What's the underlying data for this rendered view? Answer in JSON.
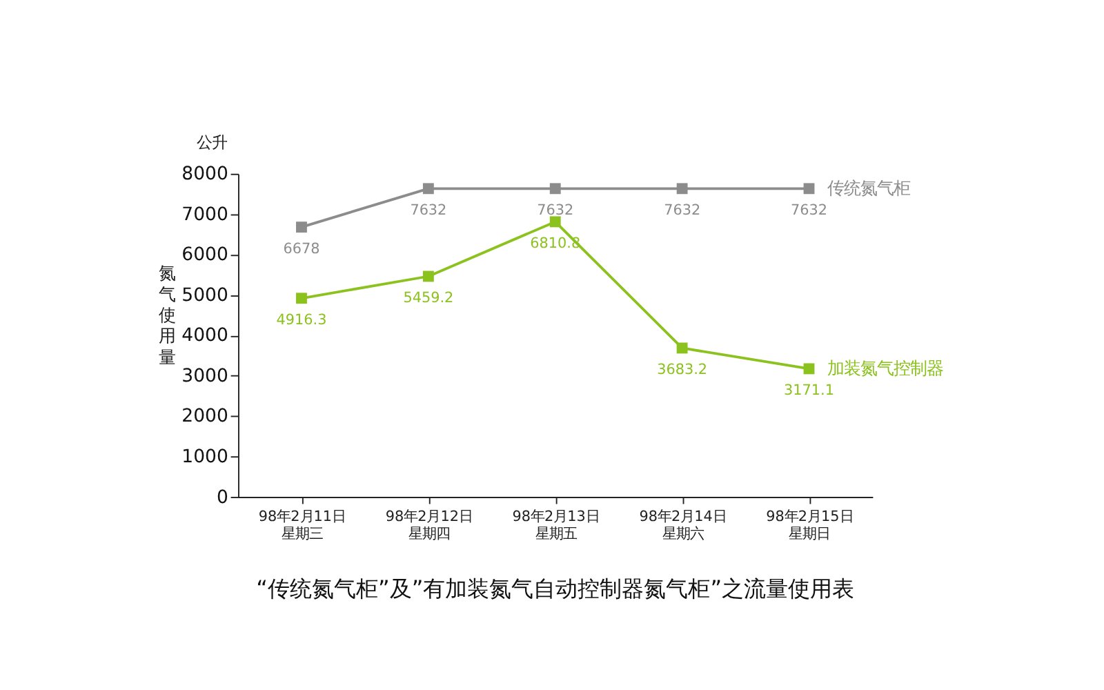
{
  "chart_data": {
    "type": "line",
    "title": "“传统氮气柜”及”有加装氮气自动控制器氮气柜”之流量使用表",
    "ylabel": "氮气使用量",
    "annotations": [
      "公升"
    ],
    "categories": [
      "98年2月11日星期三",
      "98年2月12日星期四",
      "98年2月13日星期五",
      "98年2月14日星期六",
      "98年2月15日星期日"
    ],
    "series": [
      {
        "name": "传统氮气柜",
        "color": "#8c8c8c",
        "values": [
          6678,
          7632,
          7632,
          7632,
          7632
        ]
      },
      {
        "name": "加装氮气控制器",
        "color": "#8cc21e",
        "values": [
          4916.3,
          5459.2,
          6810.8,
          3683.2,
          3171.1
        ]
      }
    ],
    "ylim": [
      0,
      8000
    ],
    "yticks": [
      0,
      1000,
      2000,
      3000,
      4000,
      5000,
      6000,
      7000,
      8000
    ],
    "grid": false,
    "legend": false,
    "marker": "square",
    "line_style": "solid",
    "data_labels": true
  }
}
